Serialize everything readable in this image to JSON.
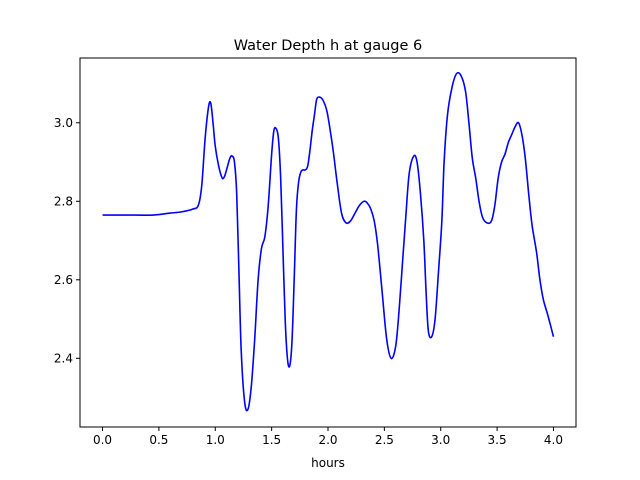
{
  "chart_data": {
    "type": "line",
    "title": "Water Depth h at gauge 6",
    "xlabel": "hours",
    "ylabel": "",
    "xlim": [
      -0.2,
      4.2
    ],
    "ylim": [
      2.225,
      3.165
    ],
    "xticks": [
      0.0,
      0.5,
      1.0,
      1.5,
      2.0,
      2.5,
      3.0,
      3.5,
      4.0
    ],
    "xtick_labels": [
      "0.0",
      "0.5",
      "1.0",
      "1.5",
      "2.0",
      "2.5",
      "3.0",
      "3.5",
      "4.0"
    ],
    "yticks": [
      2.4,
      2.6,
      2.8,
      3.0
    ],
    "ytick_labels": [
      "2.4",
      "2.6",
      "2.8",
      "3.0"
    ],
    "grid": false,
    "legend": "none",
    "series": [
      {
        "color": "#0000ff",
        "x": [
          0.0,
          0.2,
          0.45,
          0.6,
          0.7,
          0.8,
          0.85,
          0.88,
          0.91,
          0.94,
          0.96,
          0.98,
          1.0,
          1.03,
          1.06,
          1.08,
          1.1,
          1.13,
          1.15,
          1.17,
          1.19,
          1.21,
          1.23,
          1.26,
          1.29,
          1.32,
          1.35,
          1.38,
          1.41,
          1.44,
          1.47,
          1.5,
          1.52,
          1.54,
          1.56,
          1.58,
          1.6,
          1.62,
          1.64,
          1.66,
          1.68,
          1.7,
          1.72,
          1.74,
          1.76,
          1.78,
          1.8,
          1.82,
          1.84,
          1.86,
          1.88,
          1.9,
          1.93,
          1.96,
          1.99,
          2.02,
          2.05,
          2.08,
          2.12,
          2.16,
          2.2,
          2.24,
          2.28,
          2.32,
          2.35,
          2.38,
          2.41,
          2.44,
          2.48,
          2.52,
          2.56,
          2.6,
          2.63,
          2.66,
          2.69,
          2.72,
          2.76,
          2.79,
          2.82,
          2.85,
          2.87,
          2.89,
          2.92,
          2.95,
          2.98,
          3.01,
          3.03,
          3.06,
          3.1,
          3.14,
          3.18,
          3.22,
          3.25,
          3.28,
          3.31,
          3.34,
          3.37,
          3.41,
          3.45,
          3.48,
          3.51,
          3.54,
          3.57,
          3.6,
          3.63,
          3.66,
          3.69,
          3.72,
          3.75,
          3.78,
          3.81,
          3.85,
          3.88,
          3.91,
          3.95,
          4.0
        ],
        "y": [
          2.765,
          2.765,
          2.765,
          2.77,
          2.773,
          2.78,
          2.79,
          2.84,
          2.96,
          3.04,
          3.05,
          3.0,
          2.94,
          2.89,
          2.86,
          2.862,
          2.88,
          2.91,
          2.915,
          2.9,
          2.82,
          2.62,
          2.42,
          2.29,
          2.27,
          2.33,
          2.45,
          2.6,
          2.68,
          2.71,
          2.79,
          2.92,
          2.98,
          2.985,
          2.96,
          2.86,
          2.68,
          2.5,
          2.4,
          2.38,
          2.44,
          2.6,
          2.78,
          2.85,
          2.875,
          2.88,
          2.88,
          2.89,
          2.93,
          2.98,
          3.02,
          3.06,
          3.065,
          3.055,
          3.03,
          2.98,
          2.92,
          2.85,
          2.77,
          2.745,
          2.75,
          2.77,
          2.79,
          2.8,
          2.795,
          2.78,
          2.75,
          2.69,
          2.57,
          2.45,
          2.4,
          2.43,
          2.52,
          2.64,
          2.76,
          2.87,
          2.915,
          2.9,
          2.82,
          2.7,
          2.57,
          2.47,
          2.455,
          2.5,
          2.62,
          2.75,
          2.9,
          3.02,
          3.09,
          3.125,
          3.12,
          3.08,
          3.0,
          2.91,
          2.86,
          2.8,
          2.76,
          2.745,
          2.75,
          2.79,
          2.86,
          2.9,
          2.92,
          2.95,
          2.97,
          2.99,
          3.0,
          2.97,
          2.91,
          2.82,
          2.74,
          2.67,
          2.6,
          2.55,
          2.51,
          2.455
        ]
      }
    ]
  }
}
